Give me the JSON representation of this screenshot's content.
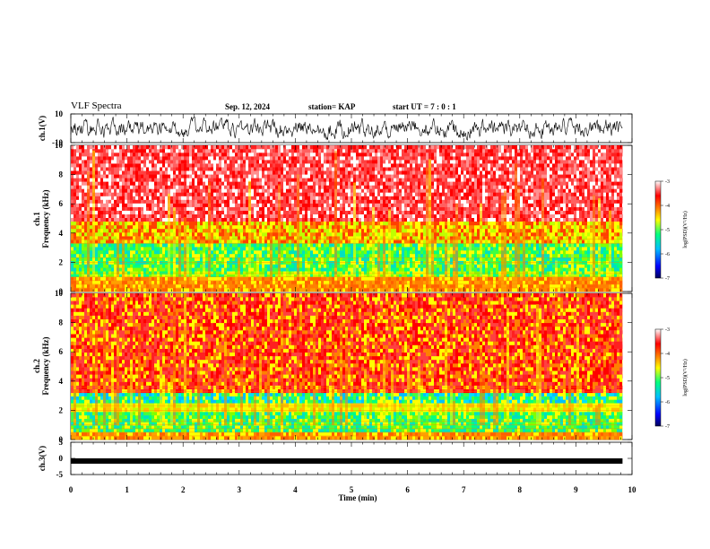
{
  "header": {
    "title": "VLF Spectra",
    "date": "Sep. 12, 2024",
    "station": "station= KAP",
    "start": "start  UT =   7 : 0  : 1"
  },
  "chart_data": [
    {
      "id": "ch1-waveform",
      "type": "line",
      "ylabel": "ch.1(V)",
      "ylim": [
        -10,
        10
      ],
      "yticks": [
        "10",
        "-10"
      ],
      "xlim": [
        0,
        10
      ]
    },
    {
      "id": "ch1-spectrogram",
      "type": "heatmap",
      "ylabel_top": "ch.1",
      "ylabel": "Frequency  (kHz)",
      "ylim": [
        0,
        10
      ],
      "yticks": [
        "0",
        "2",
        "4",
        "6",
        "8",
        "10"
      ],
      "xlim": [
        0,
        10
      ],
      "colorbar": {
        "label": "log(PSD)(V²/Hz)",
        "range": [
          -7,
          -3
        ],
        "ticks": [
          "-3",
          "-4",
          "-5",
          "-6",
          "-7"
        ]
      },
      "bands": [
        {
          "from": 0,
          "to": 1.0,
          "level": "orange"
        },
        {
          "from": 1.0,
          "to": 1.4,
          "level": "yellow-green"
        },
        {
          "from": 1.4,
          "to": 3.3,
          "level": "green-cyan"
        },
        {
          "from": 3.3,
          "to": 4.8,
          "level": "yellow-orange"
        },
        {
          "from": 4.8,
          "to": 10,
          "level": "red-white"
        }
      ]
    },
    {
      "id": "ch2-spectrogram",
      "type": "heatmap",
      "ylabel_top": "ch.2",
      "ylabel": "Frequency  (kHz)",
      "ylim": [
        0,
        10
      ],
      "yticks": [
        "0",
        "2",
        "4",
        "6",
        "8",
        "10"
      ],
      "xlim": [
        0,
        10
      ],
      "colorbar": {
        "label": "log(PSD)(V²/Hz)",
        "range": [
          -7,
          -3
        ],
        "ticks": [
          "-3",
          "-4",
          "-5",
          "-6",
          "-7"
        ]
      },
      "bands": [
        {
          "from": 0,
          "to": 0.5,
          "level": "orange"
        },
        {
          "from": 0.5,
          "to": 1.9,
          "level": "green-cyan"
        },
        {
          "from": 1.9,
          "to": 2.5,
          "level": "yellow"
        },
        {
          "from": 2.5,
          "to": 3.2,
          "level": "cyan-green"
        },
        {
          "from": 3.2,
          "to": 10,
          "level": "red-yellow"
        }
      ]
    },
    {
      "id": "ch3-waveform",
      "type": "line",
      "ylabel": "ch.3(V)",
      "ylim": [
        -5,
        5
      ],
      "yticks": [
        "5",
        "0",
        "-5"
      ],
      "xlim": [
        0,
        10
      ],
      "level": -0.8
    }
  ],
  "xaxis": {
    "label": "Time  (min)",
    "ticks": [
      "0",
      "1",
      "2",
      "3",
      "4",
      "5",
      "6",
      "7",
      "8",
      "9",
      "10"
    ],
    "data_end": 9.83
  },
  "colors": {
    "scale": [
      "#00005a",
      "#0000ff",
      "#00bfff",
      "#00ff80",
      "#ffff00",
      "#ff8000",
      "#ff0000",
      "#ffffff"
    ]
  }
}
